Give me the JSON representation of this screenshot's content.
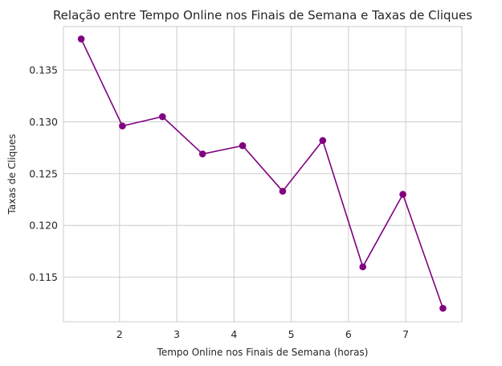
{
  "chart_data": {
    "type": "line",
    "title": "Relação entre Tempo Online nos Finais de Semana e Taxas de Cliques",
    "xlabel": "Tempo Online nos Finais de Semana (horas)",
    "ylabel": "Taxas de Cliques",
    "xlim": [
      1.02,
      7.98
    ],
    "ylim": [
      0.1107,
      0.1392
    ],
    "xticks": [
      2,
      3,
      4,
      5,
      6,
      7
    ],
    "yticks": [
      0.115,
      0.12,
      0.125,
      0.13,
      0.135
    ],
    "xtick_labels": [
      "2",
      "3",
      "4",
      "5",
      "6",
      "7"
    ],
    "ytick_labels": [
      "0.115",
      "0.120",
      "0.125",
      "0.130",
      "0.135"
    ],
    "grid": true,
    "series": [
      {
        "color": "#800080",
        "marker": "circle",
        "x": [
          1.33,
          2.05,
          2.75,
          3.45,
          4.15,
          4.85,
          5.55,
          6.25,
          6.95,
          7.65
        ],
        "y": [
          0.138,
          0.1296,
          0.1305,
          0.1269,
          0.1277,
          0.1233,
          0.1282,
          0.116,
          0.123,
          0.112
        ]
      }
    ]
  }
}
